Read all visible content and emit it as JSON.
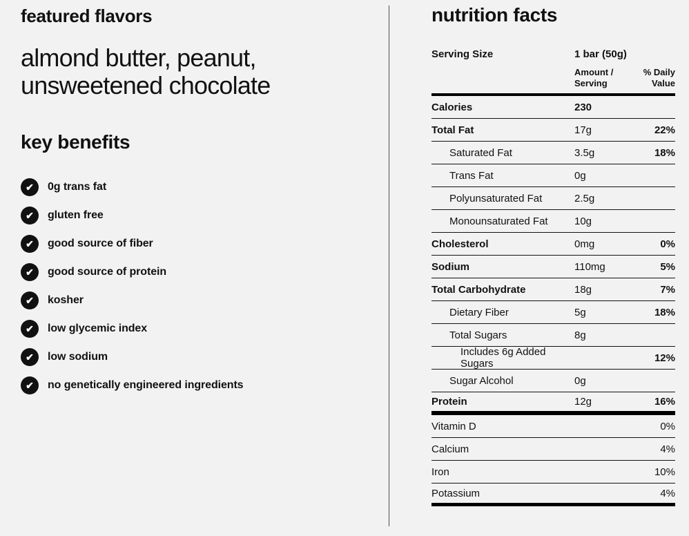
{
  "colors": {
    "background": "#f2f2f2",
    "text": "#111111",
    "check_circle": "#111111",
    "check_glyph": "#ffffff",
    "divider": "#4d4d4d"
  },
  "icons": {
    "check": "✔"
  },
  "featured": {
    "title": "featured flavors",
    "flavors_text": "almond butter, peanut, unsweetened chocolate"
  },
  "benefits": {
    "title": "key benefits",
    "items": [
      "0g trans fat",
      "gluten free",
      "good source of fiber",
      "good source of protein",
      "kosher",
      "low glycemic index",
      "low sodium",
      "no genetically engineered ingredients"
    ]
  },
  "nutrition": {
    "title": "nutrition facts",
    "serving_size_label": "Serving Size",
    "serving_size_value": "1 bar (50g)",
    "col_amount_header": "Amount / Serving",
    "col_daily_header": "% Daily Value",
    "rows": [
      {
        "label": "Calories",
        "amount": "230",
        "dv": "",
        "bold": true,
        "amount_bold": true,
        "indent": 0,
        "thick_after": false
      },
      {
        "label": "Total Fat",
        "amount": "17g",
        "dv": "22%",
        "bold": true,
        "amount_bold": false,
        "indent": 0,
        "thick_after": false
      },
      {
        "label": "Saturated Fat",
        "amount": "3.5g",
        "dv": "18%",
        "bold": false,
        "amount_bold": false,
        "indent": 1,
        "thick_after": false
      },
      {
        "label": "Trans Fat",
        "amount": "0g",
        "dv": "",
        "bold": false,
        "amount_bold": false,
        "indent": 1,
        "thick_after": false
      },
      {
        "label": "Polyunsaturated Fat",
        "amount": "2.5g",
        "dv": "",
        "bold": false,
        "amount_bold": false,
        "indent": 1,
        "thick_after": false
      },
      {
        "label": "Monounsaturated Fat",
        "amount": "10g",
        "dv": "",
        "bold": false,
        "amount_bold": false,
        "indent": 1,
        "thick_after": false
      },
      {
        "label": "Cholesterol",
        "amount": "0mg",
        "dv": "0%",
        "bold": true,
        "amount_bold": false,
        "indent": 0,
        "thick_after": false
      },
      {
        "label": "Sodium",
        "amount": "110mg",
        "dv": "5%",
        "bold": true,
        "amount_bold": false,
        "indent": 0,
        "thick_after": false
      },
      {
        "label": "Total Carbohydrate",
        "amount": "18g",
        "dv": "7%",
        "bold": true,
        "amount_bold": false,
        "indent": 0,
        "thick_after": false
      },
      {
        "label": "Dietary Fiber",
        "amount": "5g",
        "dv": "18%",
        "bold": false,
        "amount_bold": false,
        "indent": 1,
        "thick_after": false
      },
      {
        "label": "Total Sugars",
        "amount": "8g",
        "dv": "",
        "bold": false,
        "amount_bold": false,
        "indent": 1,
        "thick_after": false
      },
      {
        "label": "Includes 6g Added Sugars",
        "amount": "",
        "dv": "12%",
        "bold": false,
        "amount_bold": false,
        "indent": 2,
        "thick_after": false
      },
      {
        "label": "Sugar Alcohol",
        "amount": "0g",
        "dv": "",
        "bold": false,
        "amount_bold": false,
        "indent": 1,
        "thick_after": false
      },
      {
        "label": "Protein",
        "amount": "12g",
        "dv": "16%",
        "bold": true,
        "amount_bold": false,
        "indent": 0,
        "thick_after": true
      }
    ],
    "vitamins": [
      {
        "label": "Vitamin D",
        "dv": "0%"
      },
      {
        "label": "Calcium",
        "dv": "4%"
      },
      {
        "label": "Iron",
        "dv": "10%"
      },
      {
        "label": "Potassium",
        "dv": "4%"
      }
    ]
  }
}
